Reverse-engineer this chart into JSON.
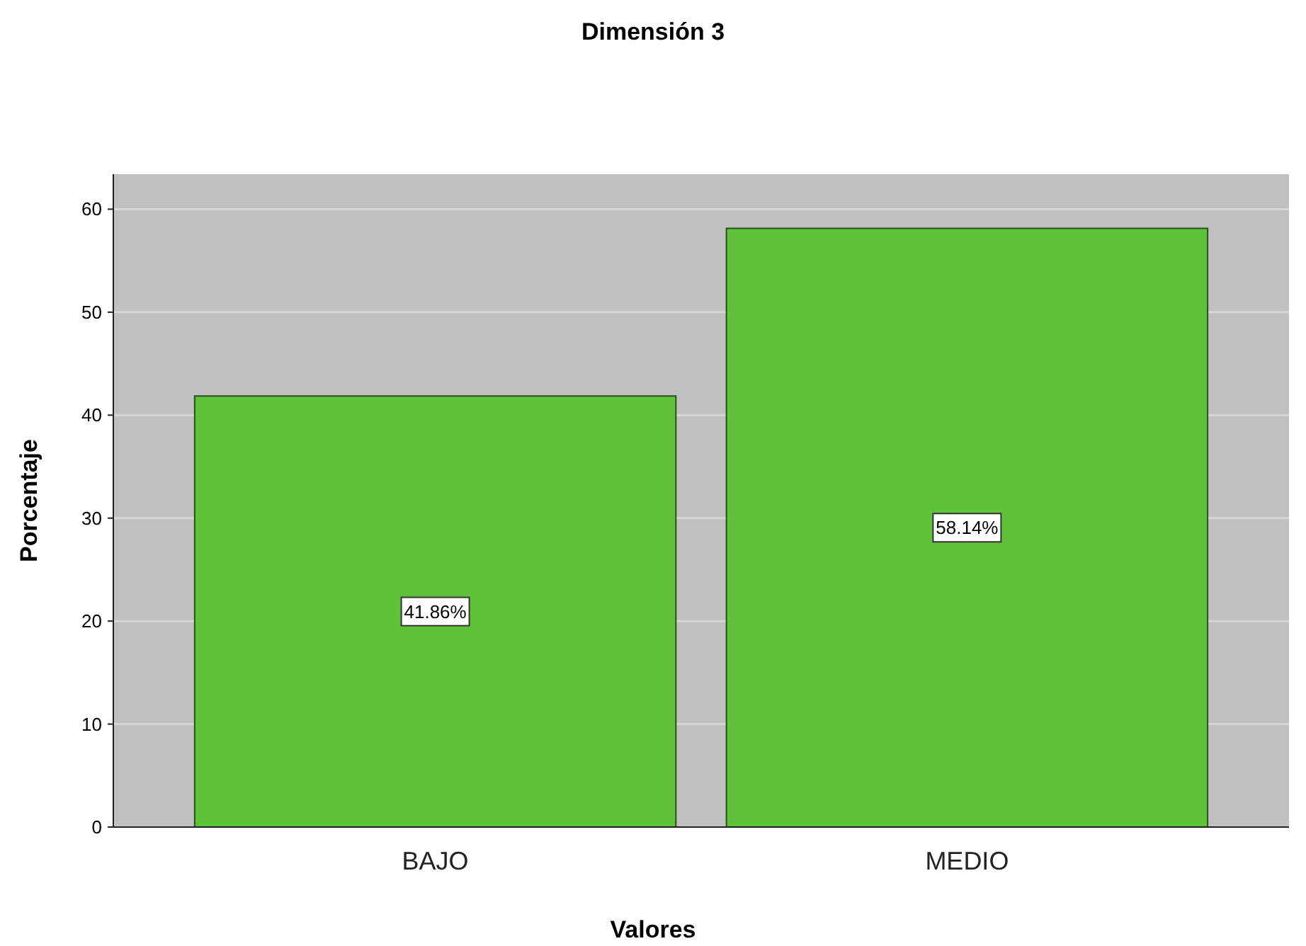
{
  "chart_data": {
    "type": "bar",
    "title": "Dimensión 3",
    "xlabel": "Valores",
    "ylabel": "Porcentaje",
    "categories": [
      "BAJO",
      "MEDIO"
    ],
    "values": [
      41.86,
      58.14
    ],
    "value_labels": [
      "41.86%",
      "58.14%"
    ],
    "color": "#5ec339",
    "ylim": [
      0,
      63.4
    ],
    "yticks": [
      0,
      10,
      20,
      30,
      40,
      50,
      60
    ],
    "grid": "y"
  }
}
